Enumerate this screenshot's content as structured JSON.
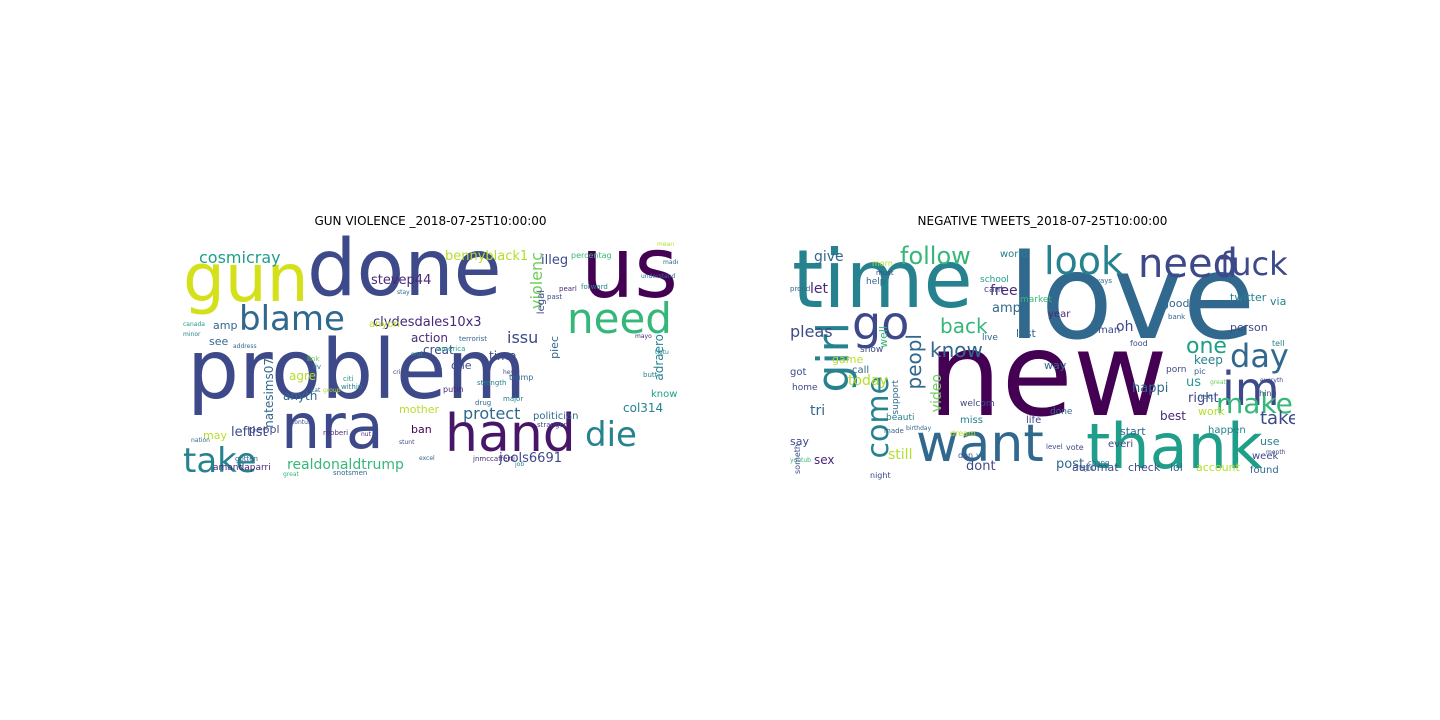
{
  "colors": {
    "viridis": [
      "#440154",
      "#482878",
      "#3e4989",
      "#31688e",
      "#26828e",
      "#1f9e89",
      "#35b779",
      "#6ece58",
      "#b5de2b",
      "#fde725"
    ]
  },
  "panels": [
    {
      "title": "GUN VIOLENCE _2018-07-25T10:00:00",
      "words": [
        {
          "t": "problem",
          "c": "#3e4989"
        },
        {
          "t": "done",
          "c": "#3e4989"
        },
        {
          "t": "gun",
          "c": "#d4e11a"
        },
        {
          "t": "us",
          "c": "#440154"
        },
        {
          "t": "nra",
          "c": "#3e4989"
        },
        {
          "t": "hand",
          "c": "#481668"
        },
        {
          "t": "need",
          "c": "#35b779"
        },
        {
          "t": "blame",
          "c": "#31688e"
        },
        {
          "t": "take",
          "c": "#26828e"
        },
        {
          "t": "die",
          "c": "#26828e"
        },
        {
          "t": "cosmicray",
          "c": "#1f9e89"
        },
        {
          "t": "realdonaldtrump",
          "c": "#35b779"
        },
        {
          "t": "protect",
          "c": "#31688e"
        },
        {
          "t": "issu",
          "c": "#3e4989"
        },
        {
          "t": "violenc",
          "c": "#6ece58"
        },
        {
          "t": "stevep44",
          "c": "#482878"
        },
        {
          "t": "bennyblack1",
          "c": "#b5de2b"
        },
        {
          "t": "illeg",
          "c": "#3e4989"
        },
        {
          "t": "clydesdales10x3",
          "c": "#482878"
        },
        {
          "t": "natesims07",
          "c": "#31688e"
        },
        {
          "t": "leftist",
          "c": "#3e4989"
        },
        {
          "t": "jools6691",
          "c": "#3e4989"
        },
        {
          "t": "control",
          "c": "#26828e"
        },
        {
          "t": "action",
          "c": "#482878"
        },
        {
          "t": "creat",
          "c": "#3e4989"
        },
        {
          "t": "time",
          "c": "#3e4989"
        },
        {
          "t": "col314",
          "c": "#26828e"
        },
        {
          "t": "know",
          "c": "#1f9e89"
        },
        {
          "t": "adraero",
          "c": "#26828e"
        },
        {
          "t": "legal",
          "c": "#3e4989"
        },
        {
          "t": "piec",
          "c": "#31688e"
        },
        {
          "t": "agre",
          "c": "#b5de2b"
        },
        {
          "t": "anyth",
          "c": "#31688e"
        },
        {
          "t": "mother",
          "c": "#b5de2b"
        },
        {
          "t": "peopl",
          "c": "#3e4989"
        },
        {
          "t": "ban",
          "c": "#440154"
        },
        {
          "t": "may",
          "c": "#b5de2b"
        },
        {
          "t": "see",
          "c": "#31688e"
        },
        {
          "t": "amp",
          "c": "#31688e"
        },
        {
          "t": "anyon",
          "c": "#b5de2b"
        },
        {
          "t": "one",
          "c": "#3e4989"
        },
        {
          "t": "politician",
          "c": "#31688e"
        },
        {
          "t": "amandaparri",
          "c": "#482878"
        },
        {
          "t": "canada",
          "c": "#1f9e89"
        },
        {
          "t": "minor",
          "c": "#26828e"
        },
        {
          "t": "terrorist",
          "c": "#31688e"
        },
        {
          "t": "america",
          "c": "#1f9e89"
        },
        {
          "t": "strength",
          "c": "#26828e"
        },
        {
          "t": "putin",
          "c": "#482878"
        },
        {
          "t": "trump",
          "c": "#31688e"
        },
        {
          "t": "stranger",
          "c": "#3e4989"
        },
        {
          "t": "major",
          "c": "#26828e"
        },
        {
          "t": "drug",
          "c": "#31688e"
        },
        {
          "t": "butt",
          "c": "#26828e"
        },
        {
          "t": "percentag",
          "c": "#35b779"
        },
        {
          "t": "forward",
          "c": "#26828e"
        },
        {
          "t": "pearl",
          "c": "#482878"
        },
        {
          "t": "past",
          "c": "#3e4989"
        },
        {
          "t": "snotsmen",
          "c": "#31688e"
        },
        {
          "t": "jnmccafferti",
          "c": "#482878"
        },
        {
          "t": "gotten",
          "c": "#31688e"
        },
        {
          "t": "robberi",
          "c": "#482878"
        },
        {
          "t": "citi",
          "c": "#1f9e89"
        },
        {
          "t": "within",
          "c": "#26828e"
        },
        {
          "t": "link",
          "c": "#6ece58"
        },
        {
          "t": "liv",
          "c": "#26828e"
        },
        {
          "t": "nation",
          "c": "#31688e"
        },
        {
          "t": "group",
          "c": "#b5de2b"
        },
        {
          "t": "contus",
          "c": "#3e4989"
        },
        {
          "t": "address",
          "c": "#31688e"
        },
        {
          "t": "mayo",
          "c": "#482878"
        },
        {
          "t": "job",
          "c": "#26828e"
        },
        {
          "t": "great",
          "c": "#35b779"
        },
        {
          "t": "stunt",
          "c": "#3e4989"
        },
        {
          "t": "excel",
          "c": "#31688e"
        },
        {
          "t": "tiotu",
          "c": "#26828e"
        },
        {
          "t": "hey",
          "c": "#3e4989"
        },
        {
          "t": "made",
          "c": "#31688e"
        },
        {
          "t": "understand",
          "c": "#31688e"
        },
        {
          "t": "crime",
          "c": "#3e4989"
        },
        {
          "t": "nut",
          "c": "#482878"
        },
        {
          "t": "cat",
          "c": "#31688e"
        },
        {
          "t": "end",
          "c": "#26828e"
        },
        {
          "t": "stay",
          "c": "#31688e"
        },
        {
          "t": "mean",
          "c": "#b5de2b"
        }
      ]
    },
    {
      "title": "NEGATIVE TWEETS_2018-07-25T10:00:00",
      "words": [
        {
          "t": "love",
          "c": "#31688e"
        },
        {
          "t": "new",
          "c": "#440154"
        },
        {
          "t": "time",
          "c": "#26828e"
        },
        {
          "t": "thank",
          "c": "#1f9e89"
        },
        {
          "t": "want",
          "c": "#31688e"
        },
        {
          "t": "girl",
          "c": "#26828e"
        },
        {
          "t": "go",
          "c": "#3e4989"
        },
        {
          "t": "look",
          "c": "#26828e"
        },
        {
          "t": "need",
          "c": "#3e4989"
        },
        {
          "t": "fuck",
          "c": "#3e4989"
        },
        {
          "t": "im",
          "c": "#3e4989"
        },
        {
          "t": "day",
          "c": "#31688e"
        },
        {
          "t": "make",
          "c": "#35b779"
        },
        {
          "t": "come",
          "c": "#26828e"
        },
        {
          "t": "follow",
          "c": "#35b779"
        },
        {
          "t": "know",
          "c": "#31688e"
        },
        {
          "t": "back",
          "c": "#35b779"
        },
        {
          "t": "peopl",
          "c": "#31688e"
        },
        {
          "t": "one",
          "c": "#1f9e89"
        },
        {
          "t": "take",
          "c": "#3e4989"
        },
        {
          "t": "pleas",
          "c": "#3e4989"
        },
        {
          "t": "give",
          "c": "#31688e"
        },
        {
          "t": "let",
          "c": "#482878"
        },
        {
          "t": "free",
          "c": "#482878"
        },
        {
          "t": "amp",
          "c": "#31688e"
        },
        {
          "t": "oh",
          "c": "#3e4989"
        },
        {
          "t": "today",
          "c": "#b5de2b"
        },
        {
          "t": "tri",
          "c": "#31688e"
        },
        {
          "t": "video",
          "c": "#6ece58"
        },
        {
          "t": "still",
          "c": "#b5de2b"
        },
        {
          "t": "post",
          "c": "#31688e"
        },
        {
          "t": "first",
          "c": "#31688e"
        },
        {
          "t": "dont",
          "c": "#3e4989"
        },
        {
          "t": "us",
          "c": "#1f9e89"
        },
        {
          "t": "right",
          "c": "#3e4989"
        },
        {
          "t": "happi",
          "c": "#31688e"
        },
        {
          "t": "keep",
          "c": "#26828e"
        },
        {
          "t": "best",
          "c": "#482878"
        },
        {
          "t": "work",
          "c": "#b5de2b"
        },
        {
          "t": "account",
          "c": "#b5de2b"
        },
        {
          "t": "check",
          "c": "#3e4989"
        },
        {
          "t": "automat",
          "c": "#3e4989"
        },
        {
          "t": "lol",
          "c": "#31688e"
        },
        {
          "t": "sex",
          "c": "#482878"
        },
        {
          "t": "say",
          "c": "#3e4989"
        },
        {
          "t": "good",
          "c": "#31688e"
        },
        {
          "t": "twitter",
          "c": "#26828e"
        },
        {
          "t": "via",
          "c": "#26828e"
        },
        {
          "t": "person",
          "c": "#3e4989"
        },
        {
          "t": "last",
          "c": "#31688e"
        },
        {
          "t": "well",
          "c": "#35b779"
        },
        {
          "t": "game",
          "c": "#b5de2b"
        },
        {
          "t": "call",
          "c": "#31688e"
        },
        {
          "t": "use",
          "c": "#26828e"
        },
        {
          "t": "week",
          "c": "#3e4989"
        },
        {
          "t": "found",
          "c": "#31688e"
        },
        {
          "t": "happen",
          "c": "#26828e"
        },
        {
          "t": "start",
          "c": "#31688e"
        },
        {
          "t": "life",
          "c": "#3e4989"
        },
        {
          "t": "way",
          "c": "#31688e"
        },
        {
          "t": "year",
          "c": "#482878"
        },
        {
          "t": "man",
          "c": "#3e4989"
        },
        {
          "t": "school",
          "c": "#1f9e89"
        },
        {
          "t": "world",
          "c": "#26828e"
        },
        {
          "t": "live",
          "c": "#31688e"
        },
        {
          "t": "cant",
          "c": "#3e4989"
        },
        {
          "t": "market",
          "c": "#35b779"
        },
        {
          "t": "done",
          "c": "#31688e"
        },
        {
          "t": "show",
          "c": "#3e4989"
        },
        {
          "t": "help",
          "c": "#31688e"
        },
        {
          "t": "home",
          "c": "#3e4989"
        },
        {
          "t": "got",
          "c": "#3e4989"
        },
        {
          "t": "night",
          "c": "#3e4989"
        },
        {
          "t": "miss",
          "c": "#26828e"
        },
        {
          "t": "welcom",
          "c": "#3e4989"
        },
        {
          "t": "bank",
          "c": "#31688e"
        },
        {
          "t": "porn",
          "c": "#3e4989"
        },
        {
          "t": "thing",
          "c": "#3e4989"
        },
        {
          "t": "tell",
          "c": "#26828e"
        },
        {
          "t": "beauti",
          "c": "#26828e"
        },
        {
          "t": "support",
          "c": "#31688e"
        },
        {
          "t": "dream",
          "c": "#b5de2b"
        },
        {
          "t": "vote",
          "c": "#3e4989"
        },
        {
          "t": "pic",
          "c": "#31688e"
        },
        {
          "t": "made",
          "c": "#31688e"
        },
        {
          "t": "everi",
          "c": "#3e4989"
        },
        {
          "t": "ye",
          "c": "#31688e"
        },
        {
          "t": "don",
          "c": "#3e4989"
        },
        {
          "t": "food",
          "c": "#3e4989"
        },
        {
          "t": "next",
          "c": "#31688e"
        },
        {
          "t": "morn",
          "c": "#b5de2b"
        },
        {
          "t": "must",
          "c": "#3e4989"
        },
        {
          "t": "chang",
          "c": "#31688e"
        },
        {
          "t": "level",
          "c": "#3e4989"
        },
        {
          "t": "birthday",
          "c": "#31688e"
        },
        {
          "t": "fight",
          "c": "#31688e"
        },
        {
          "t": "always",
          "c": "#31688e"
        },
        {
          "t": "month",
          "c": "#3e4989"
        },
        {
          "t": "everyth",
          "c": "#3e4989"
        },
        {
          "t": "proud",
          "c": "#31688e"
        },
        {
          "t": "youtub",
          "c": "#35b779"
        },
        {
          "t": "someth",
          "c": "#3e4989"
        },
        {
          "t": "great",
          "c": "#6ece58"
        }
      ]
    }
  ]
}
